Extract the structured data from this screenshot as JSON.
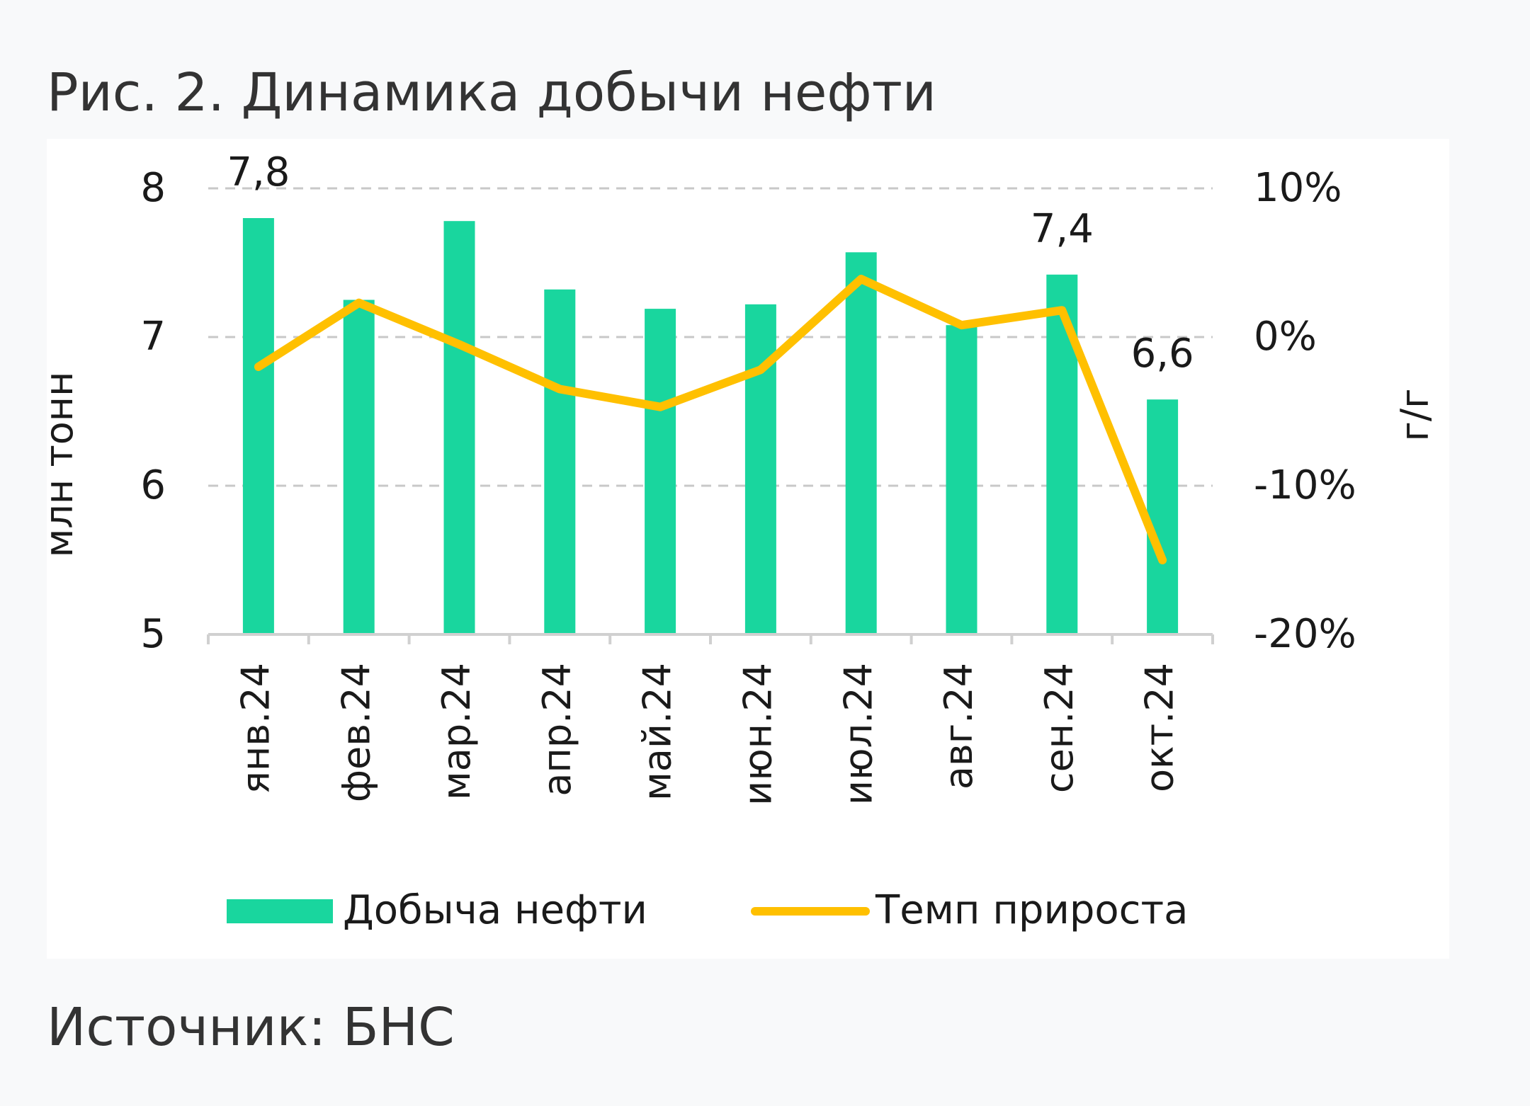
{
  "figure_title": "Рис. 2. Динамика добычи нефти",
  "source": "Источник: БНС",
  "colors": {
    "bars": "#19d69e",
    "line": "#ffc000",
    "grid": "#c8c8c8",
    "axis": "#d0d0d0",
    "text": "#1a1a1a"
  },
  "chart_data": {
    "type": "bar",
    "categories": [
      "янв.24",
      "фев.24",
      "мар.24",
      "апр.24",
      "май.24",
      "июн.24",
      "июл.24",
      "авг.24",
      "сен.24",
      "окт.24"
    ],
    "series": [
      {
        "name": "Добыча нефти",
        "type": "bar",
        "axis": "left",
        "values": [
          7.8,
          7.25,
          7.78,
          7.32,
          7.19,
          7.22,
          7.57,
          7.08,
          7.42,
          6.58
        ],
        "data_labels": [
          "7,8",
          "",
          "",
          "",
          "",
          "",
          "",
          "",
          "7,4",
          "6,6"
        ]
      },
      {
        "name": "Темп прироста",
        "type": "line",
        "axis": "right",
        "values": [
          -2.0,
          2.3,
          -0.5,
          -3.5,
          -4.7,
          -2.2,
          3.9,
          0.8,
          1.8,
          -15.0
        ]
      }
    ],
    "ylabel": "млн тонн",
    "ylim": [
      5,
      8
    ],
    "yticks": [
      "5",
      "6",
      "7",
      "8"
    ],
    "y2label": "г/г",
    "y2lim": [
      -20,
      10
    ],
    "y2ticks": [
      "-20%",
      "-10%",
      "0%",
      "10%"
    ],
    "grid": true,
    "legend": "bottom"
  }
}
